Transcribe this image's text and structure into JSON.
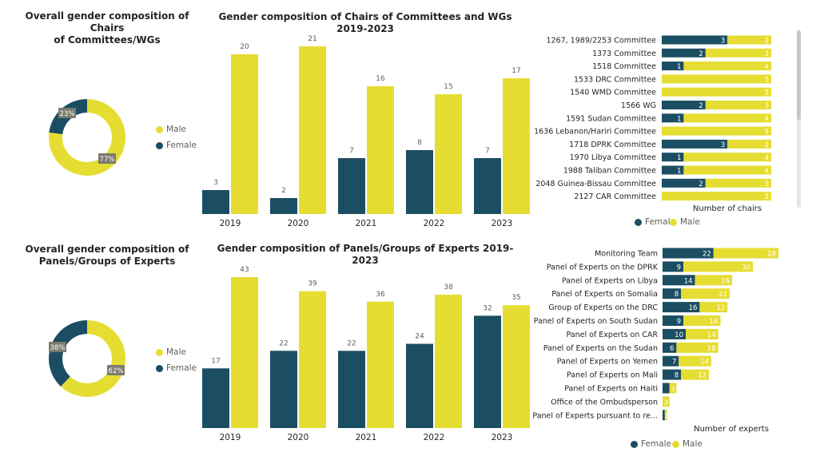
{
  "colors": {
    "female": "#1c4e63",
    "male": "#e6dd33",
    "text": "#252423",
    "muted": "#605e5c"
  },
  "labels": {
    "female": "Female",
    "male": "Male"
  },
  "chart_data": [
    {
      "id": "donut1",
      "type": "pie",
      "title": "Overall gender composition of Chairs of Committees/WGs",
      "title_lines": [
        "Overall gender composition of Chairs",
        "of Committees/WGs"
      ],
      "slices": [
        {
          "name": "Female",
          "value": 23,
          "label": "23%"
        },
        {
          "name": "Male",
          "value": 77,
          "label": "77%"
        }
      ]
    },
    {
      "id": "bars1",
      "type": "bar",
      "title": "Gender composition of Chairs of Committees and WGs 2019-2023",
      "categories": [
        "2019",
        "2020",
        "2021",
        "2022",
        "2023"
      ],
      "series": [
        {
          "name": "Female",
          "values": [
            3,
            2,
            7,
            8,
            7
          ]
        },
        {
          "name": "Male",
          "values": [
            20,
            21,
            16,
            15,
            17
          ]
        }
      ],
      "ylim": [
        0,
        21
      ]
    },
    {
      "id": "hbar1",
      "type": "bar",
      "orientation": "horizontal",
      "xlabel": "Number of chairs",
      "categories": [
        "1267, 1989/2253 Committee",
        "1373 Committee",
        "1518 Committee",
        "1533 DRC Committee",
        "1540 WMD Committee",
        "1566 WG",
        "1591 Sudan Committee",
        "1636 Lebanon/Hariri Committee",
        "1718 DPRK Committee",
        "1970 Libya Committee",
        "1988 Taliban Committee",
        "2048 Guinea-Bissau Committee",
        "2127 CAR Committee"
      ],
      "series": [
        {
          "name": "Female",
          "values": [
            3,
            2,
            1,
            0,
            0,
            2,
            1,
            0,
            3,
            1,
            1,
            2,
            0
          ]
        },
        {
          "name": "Male",
          "values": [
            2,
            3,
            4,
            5,
            5,
            3,
            4,
            5,
            2,
            4,
            4,
            3,
            5
          ]
        }
      ],
      "xlim": [
        0,
        5
      ]
    },
    {
      "id": "donut2",
      "type": "pie",
      "title": "Overall gender composition of Panels/Groups of Experts",
      "title_lines": [
        "Overall gender composition of",
        "Panels/Groups of Experts"
      ],
      "slices": [
        {
          "name": "Female",
          "value": 38,
          "label": "38%"
        },
        {
          "name": "Male",
          "value": 62,
          "label": "62%"
        }
      ]
    },
    {
      "id": "bars2",
      "type": "bar",
      "title": "Gender composition of Panels/Groups of Experts 2019-2023",
      "categories": [
        "2019",
        "2020",
        "2021",
        "2022",
        "2023"
      ],
      "series": [
        {
          "name": "Female",
          "values": [
            17,
            22,
            22,
            24,
            32
          ]
        },
        {
          "name": "Male",
          "values": [
            43,
            39,
            36,
            38,
            35
          ]
        }
      ],
      "ylim": [
        0,
        43
      ]
    },
    {
      "id": "hbar2",
      "type": "bar",
      "orientation": "horizontal",
      "xlabel": "Number of experts",
      "categories": [
        "Monitoring Team",
        "Panel of Experts on the DPRK",
        "Panel of Experts on Libya",
        "Panel of Experts on Somalia",
        "Group of Experts on the DRC",
        "Panel of Experts on South Sudan",
        "Panel of Experts on CAR",
        "Panel of Experts on the Sudan",
        "Panel of Experts on Yemen",
        "Panel of Experts on Mali",
        "Panel of Experts on Haiti",
        "Office of the Ombudsperson",
        "Panel of Experts pursuant to re..."
      ],
      "series": [
        {
          "name": "Female",
          "values": [
            22,
            9,
            14,
            8,
            16,
            9,
            10,
            6,
            7,
            8,
            3,
            0,
            1
          ]
        },
        {
          "name": "Male",
          "values": [
            28,
            30,
            16,
            21,
            12,
            16,
            14,
            18,
            14,
            12,
            3,
            3,
            1
          ]
        }
      ],
      "xlim": [
        0,
        50
      ]
    }
  ]
}
